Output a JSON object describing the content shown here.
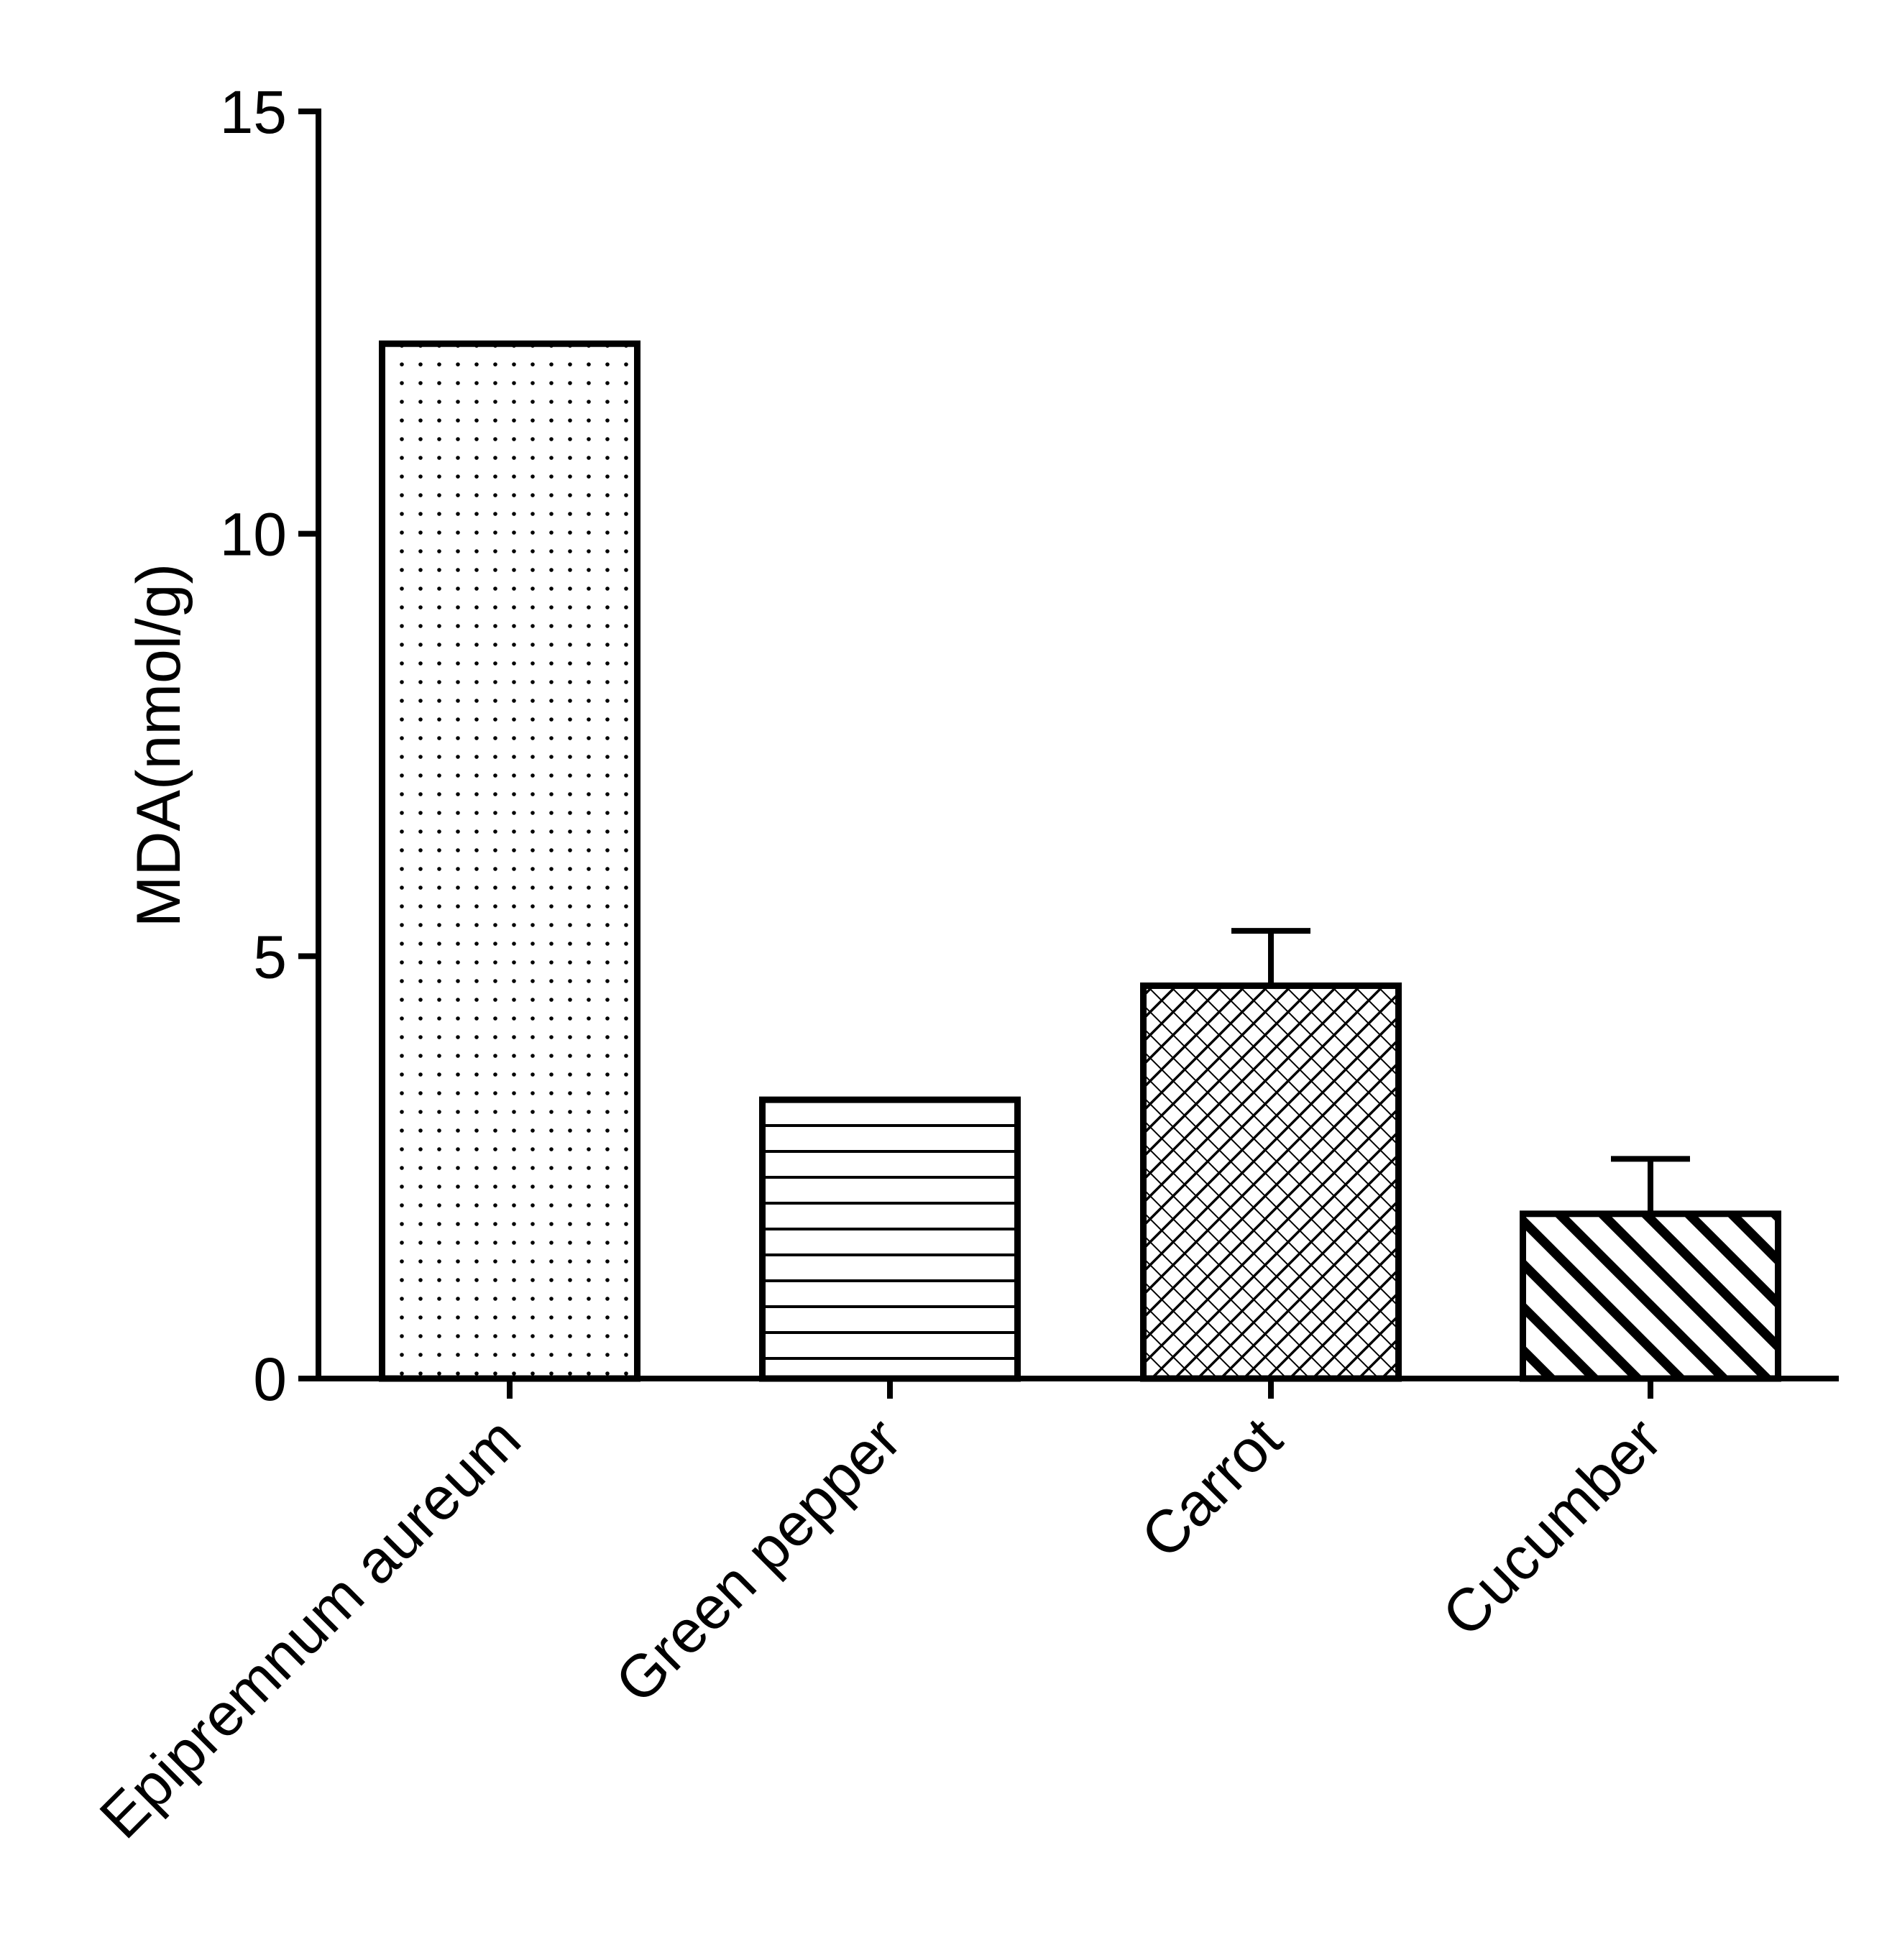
{
  "chart_data": {
    "type": "bar",
    "title": "",
    "xlabel": "",
    "ylabel": "MDA(nmol/g)",
    "ylim": [
      0,
      15
    ],
    "yticks": [
      "0",
      "5",
      "10",
      "15"
    ],
    "grid": false,
    "categories": [
      "Epipremnum aureum",
      "Green pepper",
      "Carrot",
      "Cucumber"
    ],
    "values": [
      12.25,
      3.3,
      4.65,
      1.95
    ],
    "error_upper": [
      0,
      0,
      0.65,
      0.65
    ],
    "fill_patterns": [
      "dots",
      "horizontal-lines",
      "crosshatch",
      "diagonal-stripes"
    ],
    "colors": {
      "ink": "#000000",
      "background": "#ffffff"
    }
  }
}
